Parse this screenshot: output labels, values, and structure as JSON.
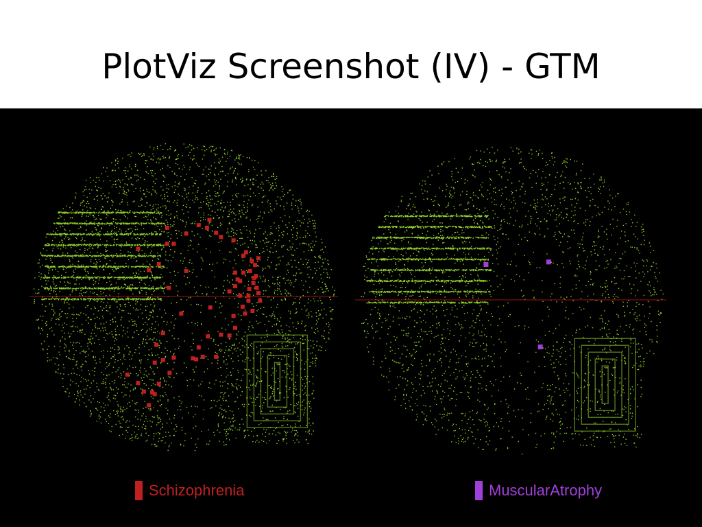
{
  "slide": {
    "title": "PlotViz Screenshot (IV) - GTM"
  },
  "colors": {
    "background": "#000000",
    "points": "#8fcf2a",
    "axis_line": "#a01010"
  },
  "chart_data": [
    {
      "type": "scatter",
      "title": "",
      "legend": {
        "label": "Schizophrenia",
        "color": "#c02020",
        "placement": "bottom-center"
      },
      "xlim": [
        -1,
        1
      ],
      "ylim": [
        -1,
        1
      ],
      "grid": false,
      "highlight_points": [
        [
          -0.55,
          0.56
        ],
        [
          -0.2,
          0.81
        ],
        [
          -0.12,
          0.62
        ],
        [
          -0.2,
          0.62
        ],
        [
          0.03,
          0.74
        ],
        [
          0.18,
          0.84
        ],
        [
          0.31,
          0.9
        ],
        [
          0.28,
          0.81
        ],
        [
          0.39,
          0.75
        ],
        [
          0.45,
          0.7
        ],
        [
          0.6,
          0.66
        ],
        [
          0.75,
          0.52
        ],
        [
          0.72,
          0.48
        ],
        [
          0.82,
          0.42
        ],
        [
          0.86,
          0.37
        ],
        [
          0.9,
          0.45
        ],
        [
          0.87,
          0.24
        ],
        [
          0.84,
          0.16
        ],
        [
          0.79,
          0.09
        ],
        [
          0.9,
          0.04
        ],
        [
          0.78,
          0.01
        ],
        [
          0.68,
          0.01
        ],
        [
          0.62,
          0.12
        ],
        [
          0.55,
          0.06
        ],
        [
          0.72,
          0.28
        ],
        [
          0.65,
          0.2
        ],
        [
          0.78,
          -0.05
        ],
        [
          0.71,
          -0.12
        ],
        [
          0.83,
          -0.17
        ],
        [
          0.74,
          -0.2
        ],
        [
          0.6,
          -0.23
        ],
        [
          0.85,
          0.22
        ],
        [
          0.92,
          -0.05
        ],
        [
          0.45,
          -0.45
        ],
        [
          -0.42,
          0.31
        ],
        [
          -0.3,
          0.38
        ],
        [
          0.03,
          0.3
        ],
        [
          -0.18,
          0.1
        ],
        [
          -0.03,
          -0.2
        ],
        [
          0.29,
          -0.47
        ],
        [
          0.32,
          -0.13
        ],
        [
          0.55,
          -0.46
        ],
        [
          0.62,
          -0.37
        ],
        [
          0.39,
          -0.71
        ],
        [
          0.23,
          -0.71
        ],
        [
          0.11,
          -0.73
        ],
        [
          0.15,
          -0.74
        ],
        [
          -0.33,
          -0.57
        ],
        [
          -0.25,
          -0.43
        ],
        [
          -0.35,
          -0.78
        ],
        [
          -0.12,
          -0.72
        ],
        [
          -0.35,
          -1.15
        ],
        [
          -0.48,
          -1.12
        ],
        [
          -0.3,
          -1.03
        ],
        [
          -0.55,
          -1.02
        ],
        [
          -0.68,
          -0.92
        ],
        [
          -0.42,
          -1.28
        ],
        [
          -0.38,
          -1.13
        ],
        [
          -0.17,
          -0.9
        ],
        [
          -0.25,
          -0.75
        ],
        [
          0.18,
          -0.6
        ],
        [
          0.62,
          0.28
        ],
        [
          0.68,
          0.18
        ],
        [
          0.8,
          0.3
        ],
        [
          0.88,
          0.1
        ]
      ]
    },
    {
      "type": "scatter",
      "title": "",
      "legend": {
        "label": "MuscularAtrophy",
        "color": "#a040d8",
        "placement": "bottom-center"
      },
      "xlim": [
        -1,
        1
      ],
      "ylim": [
        -1,
        1
      ],
      "grid": false,
      "highlight_points": [
        [
          -0.3,
          0.42
        ],
        [
          0.45,
          0.45
        ],
        [
          0.35,
          -0.55
        ]
      ]
    }
  ]
}
